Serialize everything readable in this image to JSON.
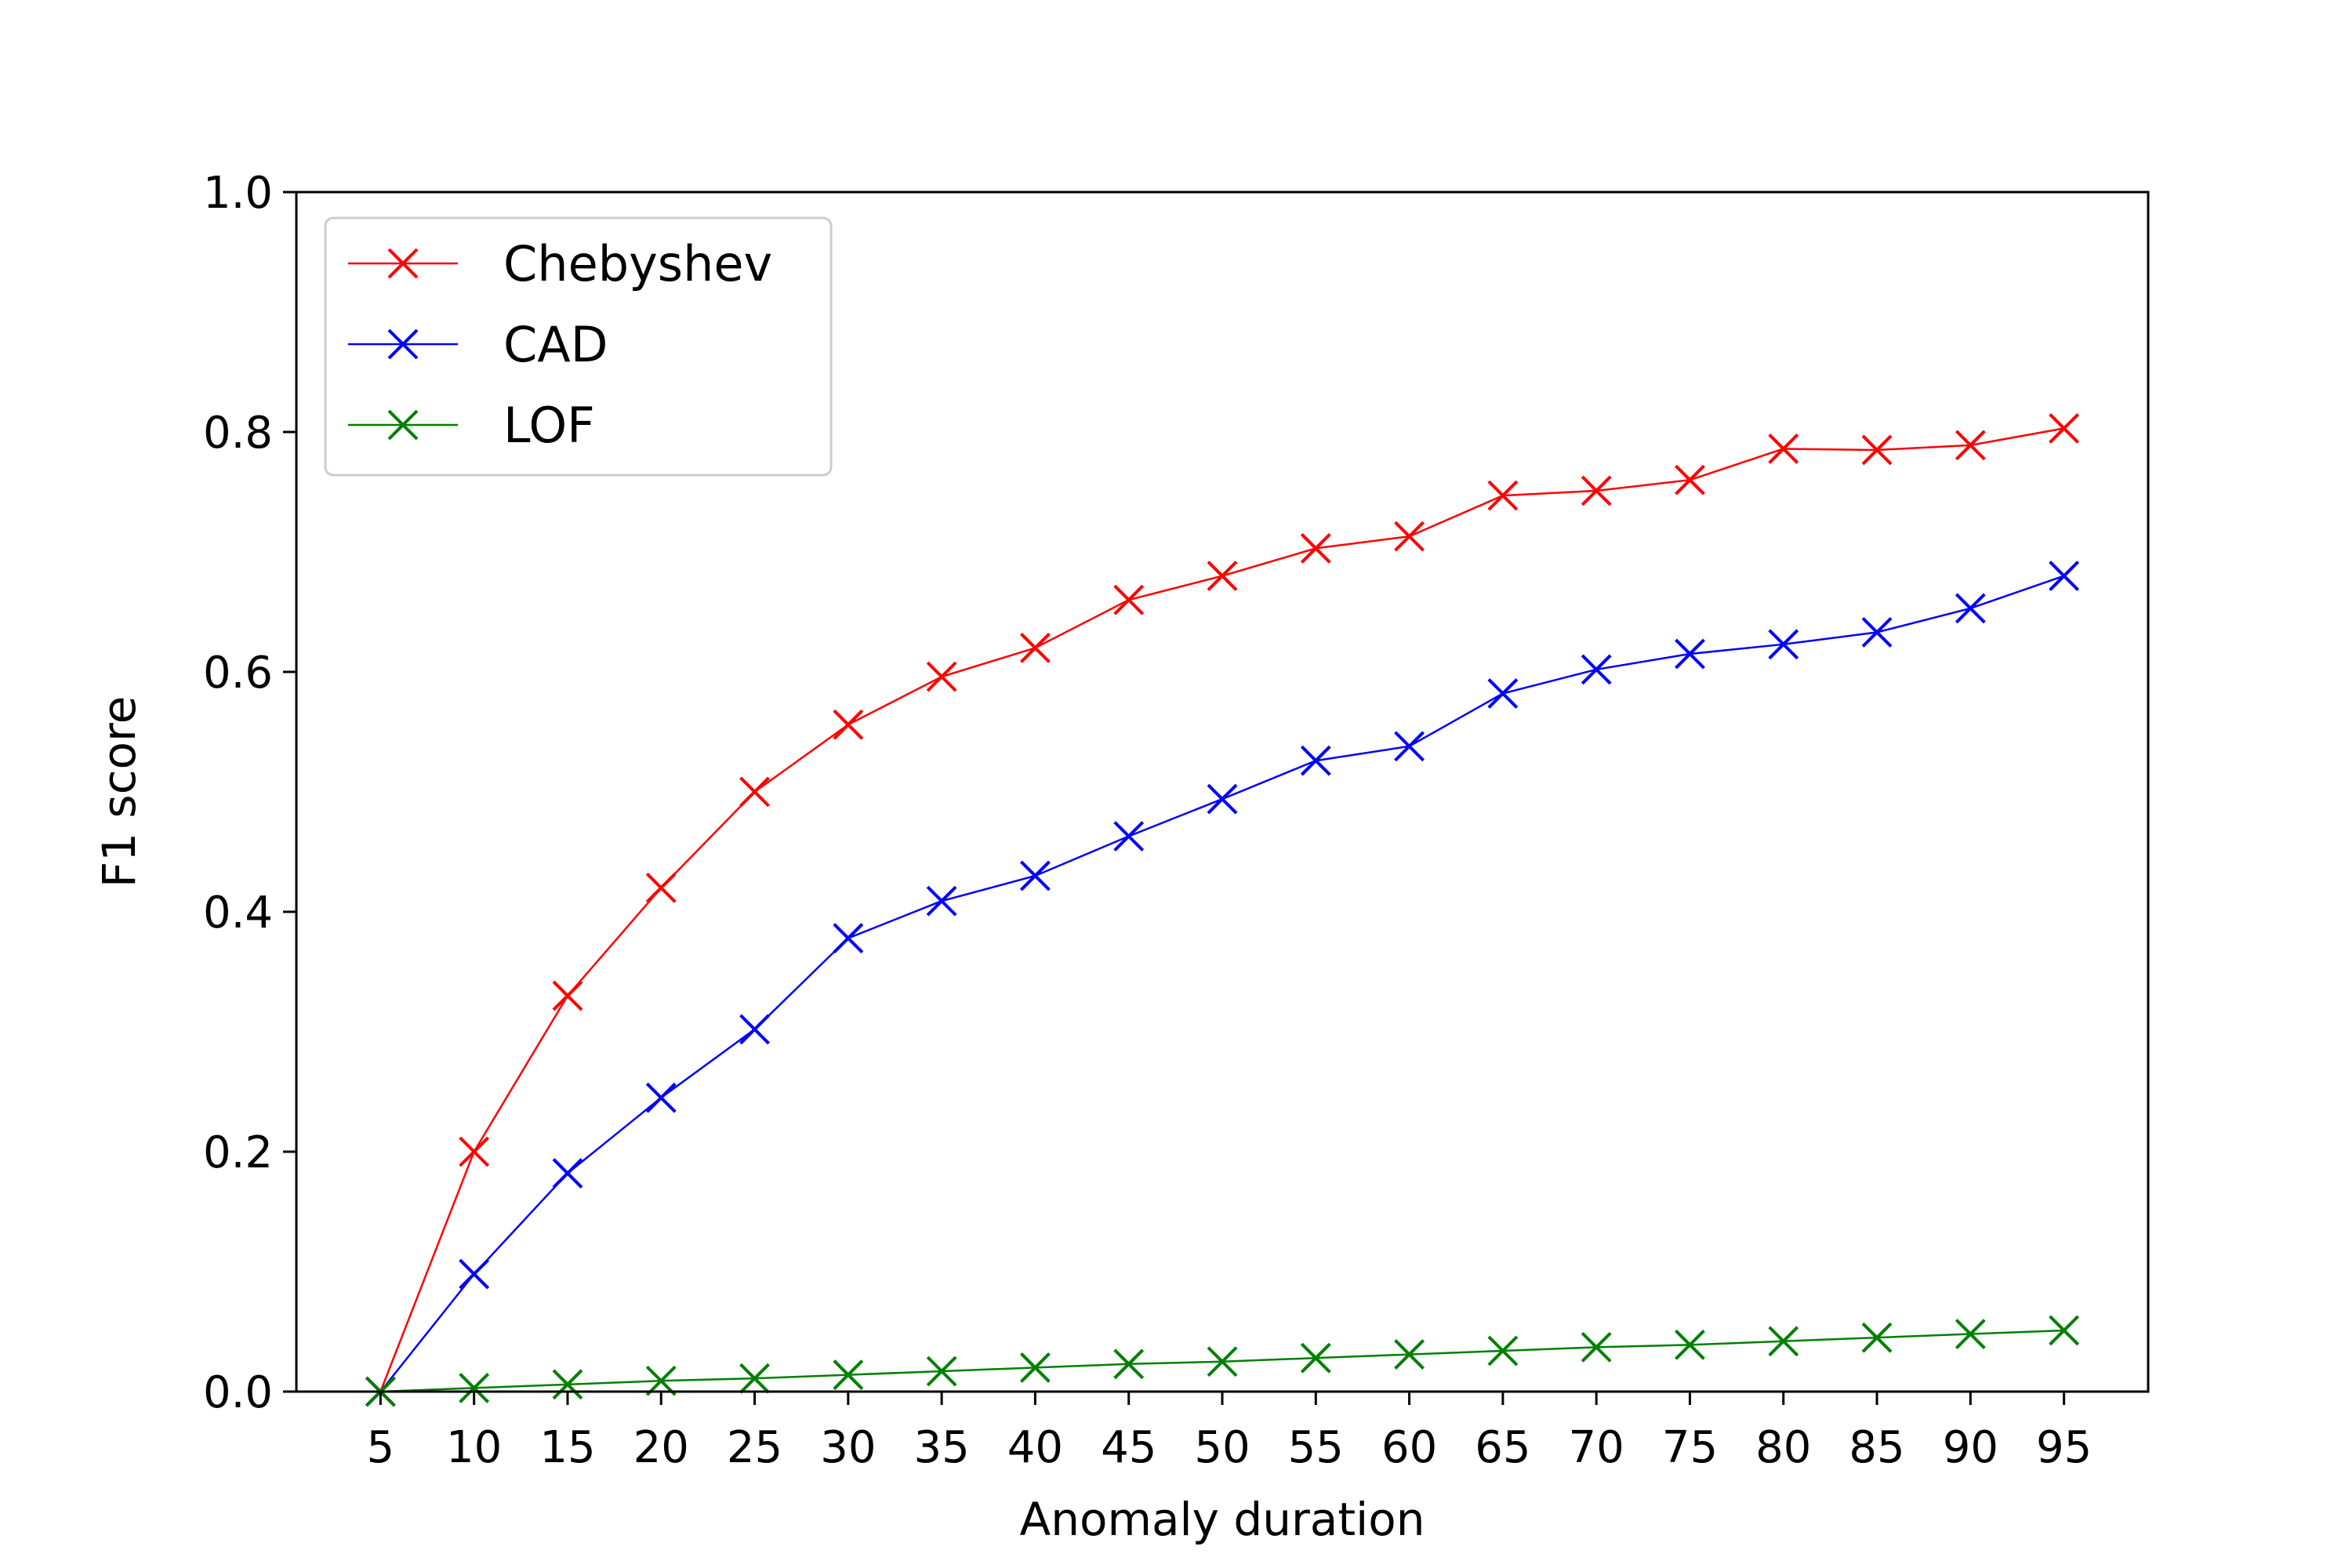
{
  "chart_data": {
    "type": "line",
    "title": "",
    "xlabel": "Anomaly duration",
    "ylabel": "F1 score",
    "x": [
      5,
      10,
      15,
      20,
      25,
      30,
      35,
      40,
      45,
      50,
      55,
      60,
      65,
      70,
      75,
      80,
      85,
      90,
      95
    ],
    "xticks": [
      "5",
      "10",
      "15",
      "20",
      "25",
      "30",
      "35",
      "40",
      "45",
      "50",
      "55",
      "60",
      "65",
      "70",
      "75",
      "80",
      "85",
      "90",
      "95"
    ],
    "xlim": [
      0.5,
      99.5
    ],
    "ylim": [
      0.0,
      1.0
    ],
    "yticks": [
      "0.0",
      "0.2",
      "0.4",
      "0.6",
      "0.8",
      "1.0"
    ],
    "grid": false,
    "legend_position": "top-left",
    "series": [
      {
        "name": "Chebyshev",
        "color": "#ff0000",
        "marker": "x",
        "values": [
          0.0,
          0.2,
          0.33,
          0.42,
          0.5,
          0.556,
          0.596,
          0.62,
          0.66,
          0.68,
          0.703,
          0.713,
          0.747,
          0.751,
          0.76,
          0.786,
          0.785,
          0.789,
          0.803
        ]
      },
      {
        "name": "CAD",
        "color": "#0000ff",
        "marker": "x",
        "values": [
          0.0,
          0.098,
          0.182,
          0.245,
          0.302,
          0.378,
          0.409,
          0.43,
          0.463,
          0.494,
          0.526,
          0.538,
          0.582,
          0.602,
          0.615,
          0.623,
          0.633,
          0.653,
          0.68
        ]
      },
      {
        "name": "LOF",
        "color": "#008000",
        "marker": "x",
        "values": [
          0.0,
          0.003,
          0.006,
          0.009,
          0.011,
          0.014,
          0.017,
          0.02,
          0.023,
          0.025,
          0.028,
          0.031,
          0.034,
          0.037,
          0.039,
          0.042,
          0.045,
          0.048,
          0.051
        ]
      }
    ]
  }
}
